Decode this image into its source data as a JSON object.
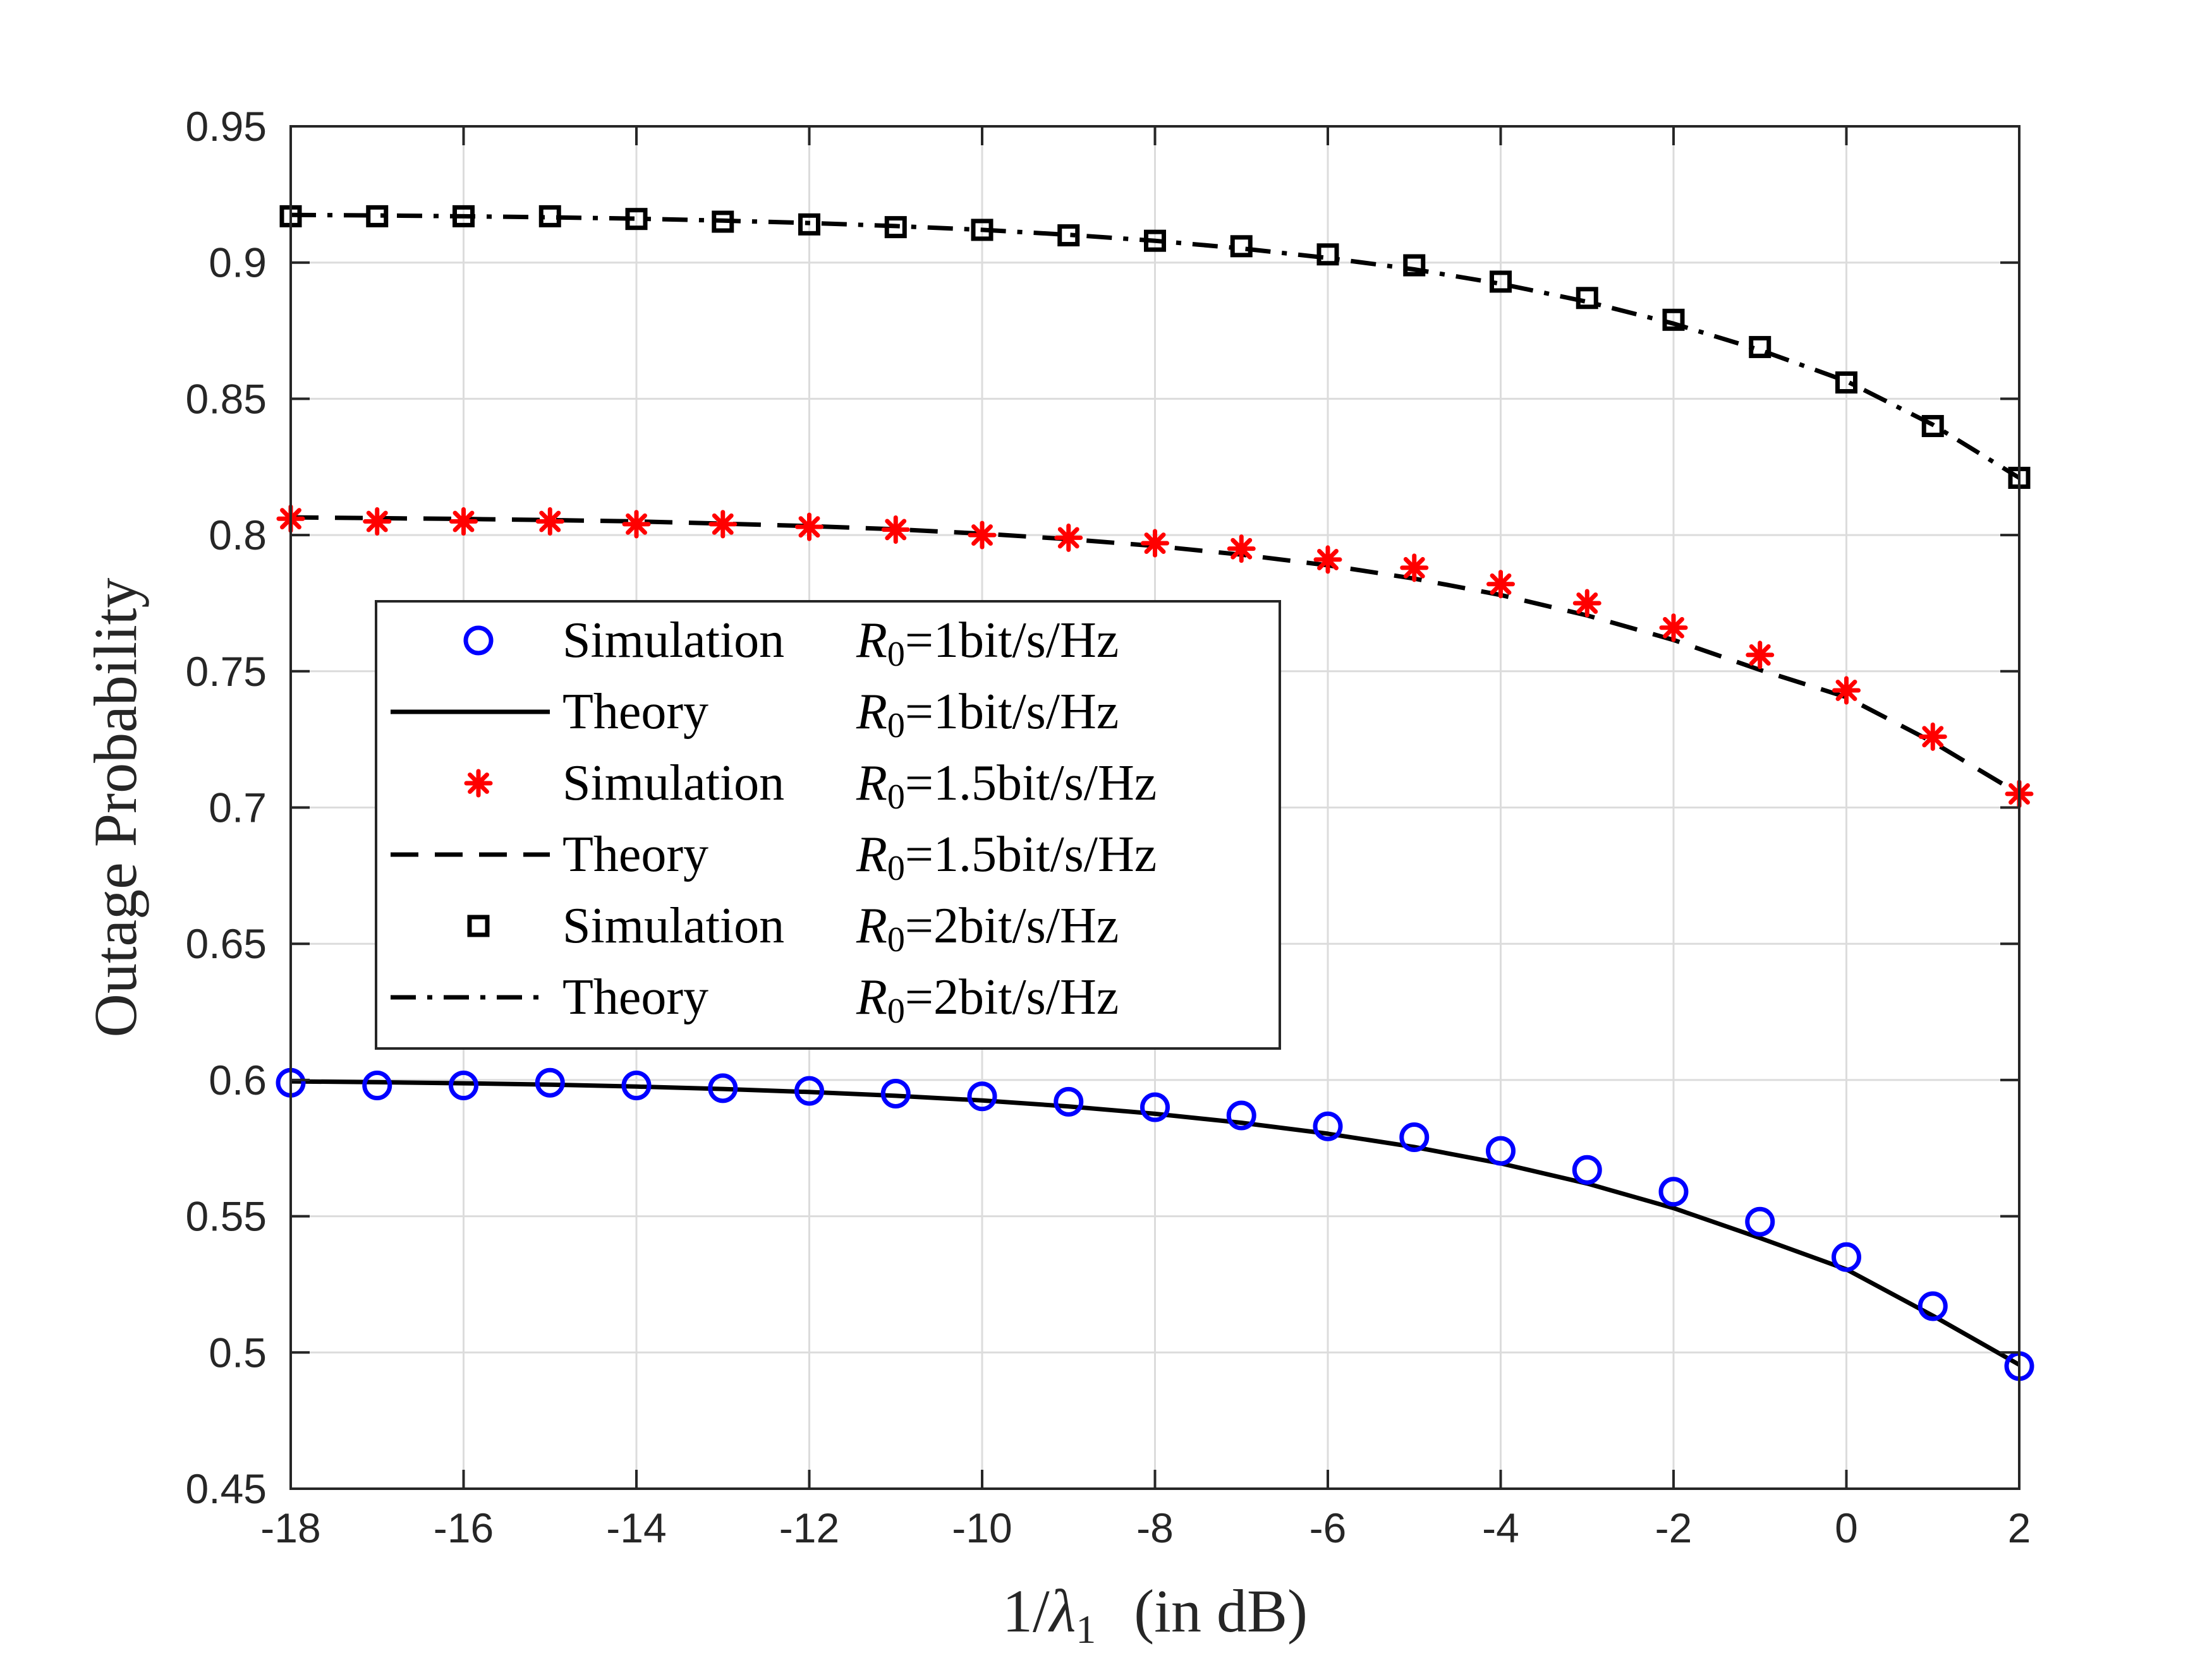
{
  "chart_data": {
    "type": "line",
    "title": "",
    "xlabel": "1/λ1 (in dB)",
    "xlabel_parts": {
      "prefix": "1/",
      "symbol": "λ",
      "subscript": "1",
      "suffix": "(in dB)"
    },
    "ylabel": "Outage Probability",
    "xlim": [
      -18,
      2
    ],
    "ylim": [
      0.45,
      0.95
    ],
    "grid": true,
    "legend_position": "center-left",
    "x_ticks": [
      -18,
      -16,
      -14,
      -12,
      -10,
      -8,
      -6,
      -4,
      -2,
      0,
      2
    ],
    "x_tick_labels": [
      "-18",
      "-16",
      "-14",
      "-12",
      "-10",
      "-8",
      "-6",
      "-4",
      "-2",
      "0",
      "2"
    ],
    "y_ticks": [
      0.45,
      0.5,
      0.55,
      0.6,
      0.65,
      0.7,
      0.75,
      0.8,
      0.85,
      0.9,
      0.95
    ],
    "y_tick_labels": [
      "0.45",
      "0.5",
      "0.55",
      "0.6",
      "0.65",
      "0.7",
      "0.75",
      "0.8",
      "0.85",
      "0.9",
      "0.95"
    ],
    "x": [
      -18,
      -17,
      -16,
      -15,
      -14,
      -13,
      -12,
      -11,
      -10,
      -9,
      -8,
      -7,
      -6,
      -5,
      -4,
      -3,
      -2,
      -1,
      0,
      1,
      2
    ],
    "series": [
      {
        "name": "Simulation R0=1bit/s/Hz",
        "legend_left": "Simulation",
        "legend_var": "R",
        "legend_sub": "0",
        "legend_rest": "=1bit/s/Hz",
        "kind": "marker",
        "marker": "circle",
        "color": "#0000ff",
        "values": [
          0.599,
          0.598,
          0.598,
          0.599,
          0.598,
          0.597,
          0.596,
          0.595,
          0.594,
          0.592,
          0.59,
          0.587,
          0.583,
          0.579,
          0.574,
          0.567,
          0.559,
          0.548,
          0.535,
          0.517,
          0.495
        ]
      },
      {
        "name": "Theory R0=1bit/s/Hz",
        "legend_left": "Theory",
        "legend_var": "R",
        "legend_sub": "0",
        "legend_rest": "=1bit/s/Hz",
        "kind": "line",
        "dash": "solid",
        "color": "#000000",
        "values": [
          0.5995,
          0.5992,
          0.5988,
          0.5983,
          0.5976,
          0.5967,
          0.5956,
          0.5942,
          0.5925,
          0.5903,
          0.5876,
          0.5843,
          0.5803,
          0.5754,
          0.5694,
          0.562,
          0.553,
          0.542,
          0.5305,
          0.5135,
          0.4955
        ]
      },
      {
        "name": "Simulation R0=1.5bit/s/Hz",
        "legend_left": "Simulation",
        "legend_var": "R",
        "legend_sub": "0",
        "legend_rest": "=1.5bit/s/Hz",
        "kind": "marker",
        "marker": "asterisk",
        "color": "#ff0000",
        "values": [
          0.806,
          0.805,
          0.805,
          0.805,
          0.804,
          0.804,
          0.803,
          0.802,
          0.8,
          0.799,
          0.797,
          0.795,
          0.791,
          0.788,
          0.782,
          0.775,
          0.766,
          0.756,
          0.743,
          0.726,
          0.705
        ]
      },
      {
        "name": "Theory R0=1.5bit/s/Hz",
        "legend_left": "Theory",
        "legend_var": "R",
        "legend_sub": "0",
        "legend_rest": "=1.5bit/s/Hz",
        "kind": "line",
        "dash": "dashed",
        "color": "#000000",
        "values": [
          0.8065,
          0.8062,
          0.8059,
          0.8055,
          0.805,
          0.8042,
          0.8033,
          0.8021,
          0.8005,
          0.7985,
          0.796,
          0.7928,
          0.7889,
          0.784,
          0.778,
          0.7705,
          0.7615,
          0.7505,
          0.7405,
          0.724,
          0.705
        ]
      },
      {
        "name": "Simulation R0=2bit/s/Hz",
        "legend_left": "Simulation",
        "legend_var": "R",
        "legend_sub": "0",
        "legend_rest": "=2bit/s/Hz",
        "kind": "marker",
        "marker": "square",
        "color": "#000000",
        "values": [
          0.917,
          0.917,
          0.917,
          0.917,
          0.916,
          0.915,
          0.914,
          0.913,
          0.912,
          0.91,
          0.908,
          0.906,
          0.903,
          0.899,
          0.893,
          0.887,
          0.879,
          0.869,
          0.856,
          0.84,
          0.821
        ]
      },
      {
        "name": "Theory R0=2bit/s/Hz",
        "legend_left": "Theory",
        "legend_var": "R",
        "legend_sub": "0",
        "legend_rest": "=2bit/s/Hz",
        "kind": "line",
        "dash": "dashdot",
        "color": "#000000",
        "values": [
          0.9175,
          0.9173,
          0.917,
          0.9166,
          0.9161,
          0.9154,
          0.9145,
          0.9134,
          0.912,
          0.9102,
          0.908,
          0.9052,
          0.9017,
          0.8975,
          0.8922,
          0.8856,
          0.8776,
          0.8679,
          0.8565,
          0.8405,
          0.821
        ]
      }
    ]
  }
}
